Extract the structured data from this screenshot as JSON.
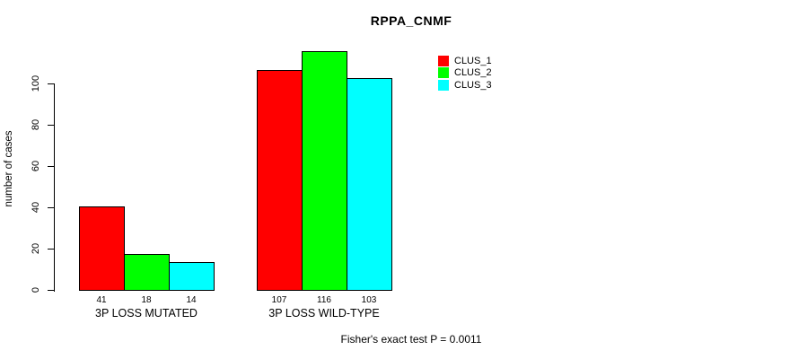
{
  "chart_data": {
    "type": "bar",
    "title": "RPPA_CNMF",
    "ylabel": "number of cases",
    "xlabel": "",
    "categories": [
      "3P LOSS MUTATED",
      "3P LOSS WILD-TYPE"
    ],
    "series": [
      {
        "name": "CLUS_1",
        "color": "#FF0000",
        "values": [
          41,
          107
        ]
      },
      {
        "name": "CLUS_2",
        "color": "#00FF00",
        "values": [
          18,
          116
        ]
      },
      {
        "name": "CLUS_3",
        "color": "#00FFFF",
        "values": [
          14,
          103
        ]
      }
    ],
    "bar_value_labels": [
      [
        41,
        18,
        14
      ],
      [
        107,
        116,
        103
      ]
    ],
    "y_ticks": [
      0,
      20,
      40,
      60,
      80,
      100
    ],
    "ylim": [
      0,
      100
    ],
    "grid": false,
    "legend_position": "top-right",
    "annotation": "Fisher's exact test P = 0.0011"
  },
  "colors": {
    "background": "#FFFFFF",
    "axis": "#000000",
    "text": "#000000",
    "clus_1": "#FF0000",
    "clus_2": "#00FF00",
    "clus_3": "#00FFFF"
  }
}
